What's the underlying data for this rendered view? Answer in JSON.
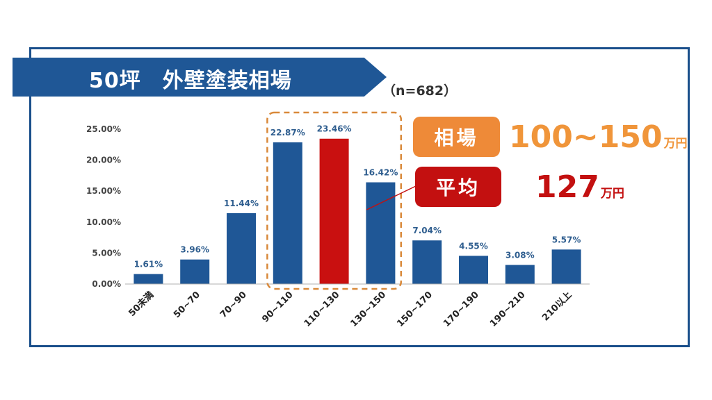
{
  "title": "50坪　外壁塗装相場",
  "sample_size": "（n=682）",
  "range_badge": {
    "label": "相場",
    "value": "100~150",
    "unit": "万円",
    "color": "#ee8a38"
  },
  "average_badge": {
    "label": "平均",
    "value": "127",
    "unit": "万円",
    "color": "#c31010"
  },
  "colors": {
    "bar": "#1f5796",
    "bar_highlight": "#c91010",
    "highlight_box": "#d9893a",
    "data_label": "#2f5e8f"
  },
  "chart_data": {
    "type": "bar",
    "categories": [
      "50未満",
      "50~70",
      "70~90",
      "90~110",
      "110~130",
      "130~150",
      "150~170",
      "170~190",
      "190~210",
      "210以上"
    ],
    "values": [
      1.61,
      3.96,
      11.44,
      22.87,
      23.46,
      16.42,
      7.04,
      4.55,
      3.08,
      5.57
    ],
    "data_labels": [
      "1.61%",
      "3.96%",
      "11.44%",
      "22.87%",
      "23.46%",
      "16.42%",
      "7.04%",
      "4.55%",
      "3.08%",
      "5.57%"
    ],
    "highlight_index": 4,
    "highlight_range": [
      3,
      5
    ],
    "ylim": [
      0,
      25
    ],
    "yticks": [
      0,
      5,
      10,
      15,
      20,
      25
    ],
    "ytick_labels": [
      "0.00%",
      "5.00%",
      "10.00%",
      "15.00%",
      "20.00%",
      "25.00%"
    ],
    "title": "",
    "xlabel": "",
    "ylabel": "",
    "grid": false,
    "legend": "none"
  }
}
